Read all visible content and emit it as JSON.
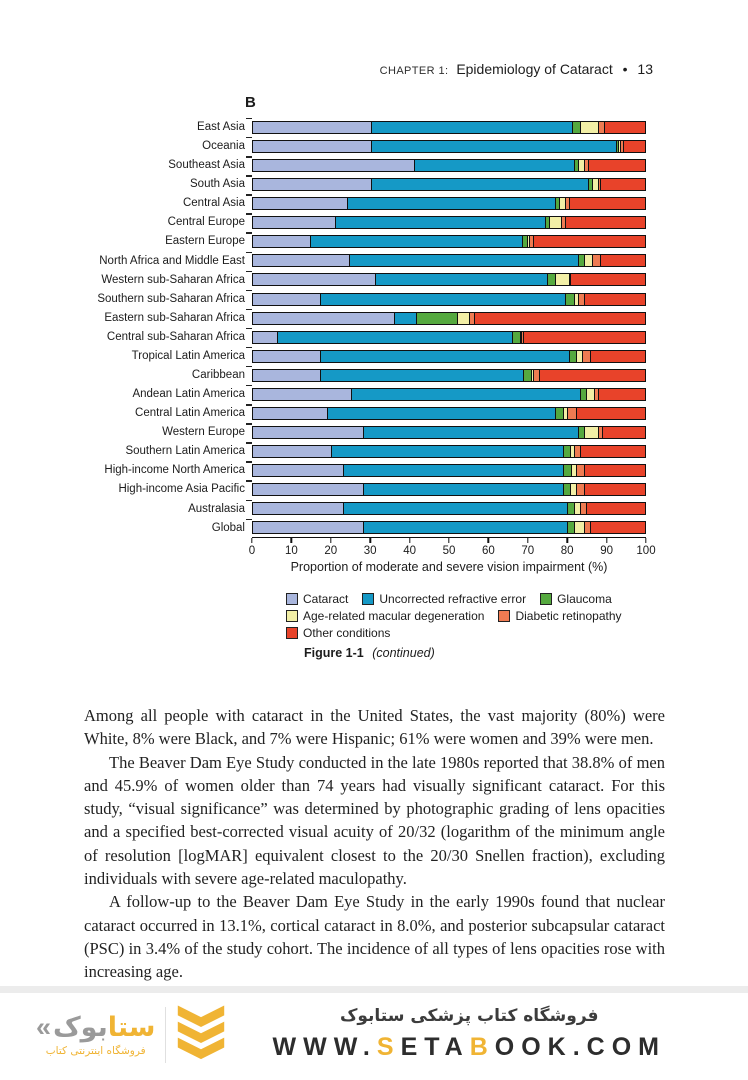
{
  "header": {
    "chapter": "CHAPTER 1:",
    "title": "Epidemiology of Cataract",
    "bullet": "•",
    "page_number": "13"
  },
  "chart_data": {
    "type": "bar",
    "orientation": "horizontal",
    "stacked": true,
    "panel_label": "B",
    "xlabel": "Proportion of moderate and severe vision impairment (%)",
    "xlim": [
      0,
      100
    ],
    "x_ticks": [
      0,
      10,
      20,
      30,
      40,
      50,
      60,
      70,
      80,
      90,
      100
    ],
    "legend_position": "below",
    "grid": false,
    "categories": [
      "East Asia",
      "Oceania",
      "Southeast Asia",
      "South Asia",
      "Central Asia",
      "Central Europe",
      "Eastern Europe",
      "North Africa and Middle East",
      "Western sub-Saharan Africa",
      "Southern sub-Saharan Africa",
      "Eastern sub-Saharan Africa",
      "Central sub-Saharan Africa",
      "Tropical Latin America",
      "Caribbean",
      "Andean Latin America",
      "Central Latin America",
      "Western Europe",
      "Southern Latin America",
      "High-income North America",
      "High-income Asia Pacific",
      "Australasia",
      "Global"
    ],
    "series": [
      {
        "name": "Cataract",
        "color": "#a9b6dd",
        "values": [
          30,
          30,
          41,
          30,
          24,
          21,
          14.5,
          24.5,
          31,
          17,
          36,
          6,
          17,
          17,
          25,
          19,
          28,
          20,
          23,
          28,
          23,
          28
        ]
      },
      {
        "name": "Uncorrected refractive error",
        "color": "#1599c6",
        "values": [
          51.5,
          62.5,
          41,
          55.5,
          53,
          53.5,
          54,
          58.5,
          44,
          62.5,
          5.5,
          60,
          63.5,
          52,
          58.5,
          58,
          55,
          59,
          56,
          51,
          57,
          52
        ]
      },
      {
        "name": "Glaucoma",
        "color": "#55a93f",
        "values": [
          2,
          0.5,
          1,
          1,
          1,
          1,
          1.5,
          1.5,
          2,
          2.5,
          10.5,
          2,
          2,
          2,
          1.5,
          2,
          1.5,
          2,
          2,
          2,
          2,
          2
        ]
      },
      {
        "name": "Age-related macular degeneration",
        "color": "#f2efa6",
        "values": [
          4.5,
          0.5,
          1.5,
          1.5,
          1.5,
          3,
          0.5,
          2,
          3.5,
          1,
          3,
          0.5,
          1.5,
          0.5,
          2,
          1,
          3.5,
          1,
          1.5,
          1.5,
          1.5,
          2.5
        ]
      },
      {
        "name": "Diabetic retinopathy",
        "color": "#ef7b52",
        "values": [
          1.5,
          1,
          1,
          0.5,
          1,
          1,
          1,
          2,
          0.5,
          1.5,
          1.5,
          0.5,
          2,
          1.5,
          1,
          2.5,
          1,
          1.5,
          2,
          2,
          1.5,
          1.5
        ]
      },
      {
        "name": "Other conditions",
        "color": "#e8432a",
        "values": [
          10.5,
          5.5,
          14.5,
          11.5,
          19.5,
          20.5,
          28.5,
          11.5,
          19,
          15.5,
          43.5,
          31,
          14,
          27,
          12,
          17.5,
          11,
          16.5,
          15.5,
          15.5,
          15,
          14
        ]
      }
    ]
  },
  "figure": {
    "caption_bold": "Figure 1-1",
    "caption_italic": "(continued)"
  },
  "body": {
    "paragraphs": [
      "Among all people with cataract in the United States, the vast majority (80%) were White, 8% were Black, and 7% were Hispanic; 61% were women and 39% were men.",
      "The Beaver Dam Eye Study conducted in the late 1980s reported that 38.8% of men and 45.9% of women older than 74 years had visually significant cataract. For this study, “visual significance” was determined by photographic grading of lens opacities and a specified best-corrected visual acuity of 20/32 (logarithm of the minimum angle of resolution [logMAR] equivalent closest to the 20/30 Snellen fraction), excluding individuals with severe age-related maculopathy.",
      "A follow-up to the Beaver Dam Eye Study in the early 1990s found that nuclear cataract occurred in 13.1%, cortical cataract in 8.0%, and posterior subcapsular cataract (PSC) in 3.4% of the study cohort. The incidence of all types of lens opacities rose with increasing age."
    ]
  },
  "footer": {
    "logo": {
      "guillemet": "«",
      "name_gray": "بوک",
      "name_yellow": "ستا",
      "subtitle": "فروشگاه اینترنتی کتاب",
      "yellow": "#f0b434",
      "gray": "#9a9a9a"
    },
    "right": {
      "line1": "فروشگاه کتاب پزشکی ستابوک",
      "url_parts": [
        {
          "text": "WWW.",
          "color": "#2d2d2d"
        },
        {
          "text": "S",
          "color": "#f0b434"
        },
        {
          "text": "ETA",
          "color": "#2d2d2d"
        },
        {
          "text": "B",
          "color": "#f0b434"
        },
        {
          "text": "OOK.COM",
          "color": "#2d2d2d"
        }
      ]
    }
  }
}
